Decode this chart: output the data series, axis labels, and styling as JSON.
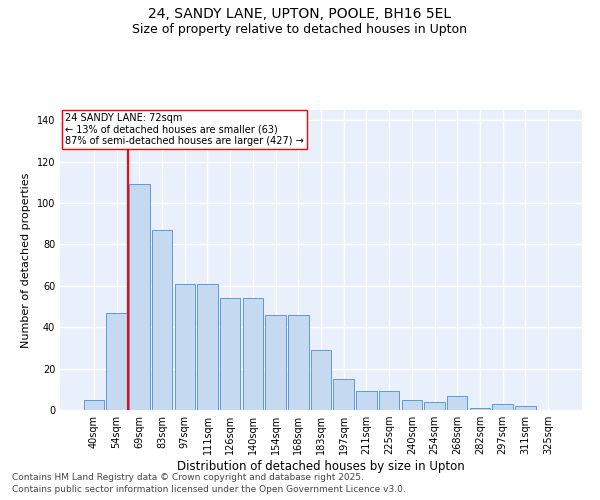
{
  "title_line1": "24, SANDY LANE, UPTON, POOLE, BH16 5EL",
  "title_line2": "Size of property relative to detached houses in Upton",
  "xlabel": "Distribution of detached houses by size in Upton",
  "ylabel": "Number of detached properties",
  "categories": [
    "40sqm",
    "54sqm",
    "69sqm",
    "83sqm",
    "97sqm",
    "111sqm",
    "126sqm",
    "140sqm",
    "154sqm",
    "168sqm",
    "183sqm",
    "197sqm",
    "211sqm",
    "225sqm",
    "240sqm",
    "254sqm",
    "268sqm",
    "282sqm",
    "297sqm",
    "311sqm",
    "325sqm"
  ],
  "bar_values": [
    5,
    47,
    109,
    87,
    61,
    61,
    54,
    54,
    46,
    46,
    29,
    15,
    9,
    9,
    5,
    4,
    7,
    1,
    3,
    2,
    0
  ],
  "bar_color": "#c5d9f0",
  "bar_edge_color": "#5b9bd5",
  "vline_color": "red",
  "annotation_text": "24 SANDY LANE: 72sqm\n← 13% of detached houses are smaller (63)\n87% of semi-detached houses are larger (427) →",
  "annotation_box_color": "white",
  "annotation_box_edge": "red",
  "bg_color": "#eaf0fb",
  "grid_color": "white",
  "footer_line1": "Contains HM Land Registry data © Crown copyright and database right 2025.",
  "footer_line2": "Contains public sector information licensed under the Open Government Licence v3.0.",
  "ylim": [
    0,
    145
  ],
  "title_fontsize": 10,
  "subtitle_fontsize": 9,
  "xlabel_fontsize": 8.5,
  "ylabel_fontsize": 8,
  "tick_fontsize": 7,
  "footer_fontsize": 6.5,
  "annot_fontsize": 7
}
